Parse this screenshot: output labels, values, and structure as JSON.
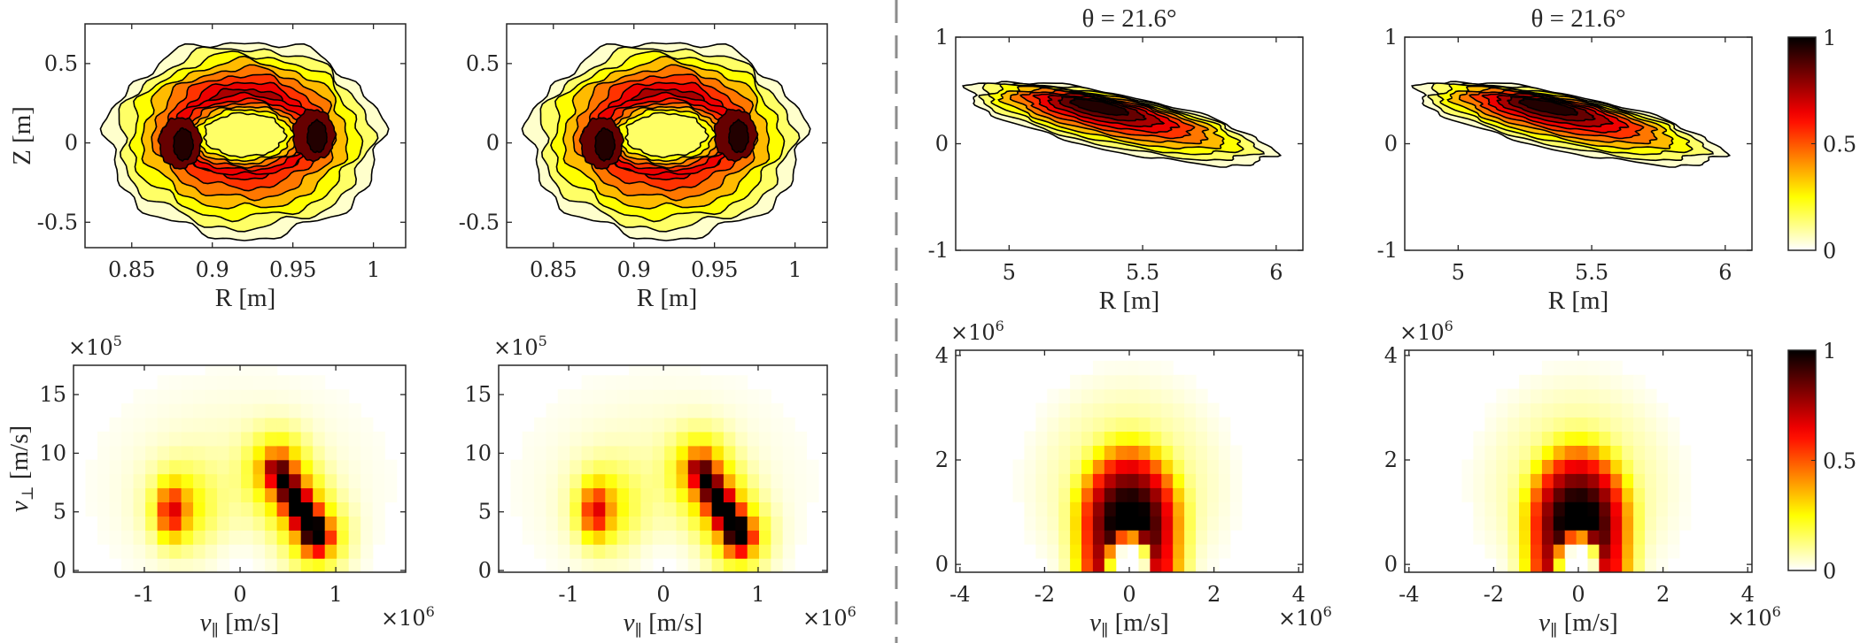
{
  "figure": {
    "divider_color": "#8c8c8c",
    "colormap": "hot (reversed: 0 = white, 1 = black)"
  },
  "chart_data": [
    {
      "id": "A1",
      "type": "contour",
      "xlabel": "R [m]",
      "ylabel": "Z [m]",
      "title": "",
      "xlim": [
        0.821,
        1.02
      ],
      "ylim": [
        -0.66,
        0.75
      ],
      "xticks": [
        "0.85",
        "0.9",
        "0.95",
        "1"
      ],
      "xtick_values": [
        0.85,
        0.9,
        0.95,
        1
      ],
      "yticks": [
        "-0.5",
        "0",
        "0.5"
      ],
      "ytick_values": [
        -0.5,
        0,
        0.5
      ],
      "grid": false,
      "shape": {
        "kind": "ring",
        "center": [
          0.92,
          0.02
        ],
        "outer_radius": [
          0.085,
          0.62
        ],
        "inner_radius": [
          0.032,
          0.2
        ],
        "peaks": [
          [
            0.88,
            0.0
          ],
          [
            0.963,
            0.05
          ]
        ]
      }
    },
    {
      "id": "A2",
      "type": "contour",
      "xlabel": "R [m]",
      "ylabel": "",
      "title": "",
      "xlim": [
        0.821,
        1.02
      ],
      "ylim": [
        -0.66,
        0.75
      ],
      "xticks": [
        "0.85",
        "0.9",
        "0.95",
        "1"
      ],
      "xtick_values": [
        0.85,
        0.9,
        0.95,
        1
      ],
      "yticks": [
        "-0.5",
        "0",
        "0.5"
      ],
      "ytick_values": [
        -0.5,
        0,
        0.5
      ],
      "grid": false,
      "shape": {
        "kind": "ring",
        "center": [
          0.92,
          0.02
        ],
        "outer_radius": [
          0.085,
          0.62
        ],
        "inner_radius": [
          0.032,
          0.2
        ],
        "peaks": [
          [
            0.88,
            0.0
          ],
          [
            0.963,
            0.05
          ]
        ]
      }
    },
    {
      "id": "A3",
      "type": "contour",
      "xlabel": "R [m]",
      "ylabel": "",
      "title": "θ = 21.6°",
      "xlim": [
        4.8,
        6.1
      ],
      "ylim": [
        -1,
        1
      ],
      "xticks": [
        "5",
        "5.5",
        "6"
      ],
      "xtick_values": [
        5,
        5.5,
        6
      ],
      "yticks": [
        "-1",
        "0",
        "1"
      ],
      "ytick_values": [
        -1,
        0,
        1
      ],
      "grid": false,
      "shape": {
        "kind": "tilted",
        "from": [
          4.85,
          0.5
        ],
        "to": [
          5.98,
          -0.12
        ],
        "peak": [
          5.33,
          0.36
        ]
      }
    },
    {
      "id": "A4",
      "type": "contour",
      "xlabel": "R [m]",
      "ylabel": "",
      "title": "θ = 21.6°",
      "xlim": [
        4.8,
        6.1
      ],
      "ylim": [
        -1,
        1
      ],
      "xticks": [
        "5",
        "5.5",
        "6"
      ],
      "xtick_values": [
        5,
        5.5,
        6
      ],
      "yticks": [
        "-1",
        "0",
        "1"
      ],
      "ytick_values": [
        -1,
        0,
        1
      ],
      "grid": false,
      "shape": {
        "kind": "tilted",
        "from": [
          4.85,
          0.5
        ],
        "to": [
          5.98,
          -0.12
        ],
        "peak": [
          5.33,
          0.36
        ]
      }
    },
    {
      "id": "B1",
      "type": "heatmap",
      "xlabel_var": "v",
      "xlabel_sub": "∥",
      "xlabel_unit": " [m/s]",
      "ylabel_var": "v",
      "ylabel_sub": "⊥",
      "ylabel_unit": " [m/s]",
      "x_multiplier": {
        "base": "×10",
        "exp": "6"
      },
      "y_multiplier": {
        "base": "×10",
        "exp": "5"
      },
      "xlim": [
        -1.74,
        1.73
      ],
      "ylim": [
        -0.15,
        17.5
      ],
      "xticks": [
        "-1",
        "0",
        "1"
      ],
      "xtick_values": [
        -1,
        0,
        1
      ],
      "yticks": [
        "0",
        "5",
        "10",
        "15"
      ],
      "ytick_values": [
        0,
        5,
        10,
        15
      ],
      "grid": false,
      "shape": {
        "kind": "two-lobes",
        "left_peak": [
          -0.72,
          5
        ],
        "right_ridge": [
          [
            0.4,
            8.5
          ],
          [
            0.8,
            3
          ]
        ],
        "right_peak_value": 1,
        "left_peak_value": 0.45
      }
    },
    {
      "id": "B2",
      "type": "heatmap",
      "xlabel_var": "v",
      "xlabel_sub": "∥",
      "xlabel_unit": " [m/s]",
      "x_multiplier": {
        "base": "×10",
        "exp": "6"
      },
      "y_multiplier": {
        "base": "×10",
        "exp": "5"
      },
      "xlim": [
        -1.74,
        1.73
      ],
      "ylim": [
        -0.15,
        17.5
      ],
      "xticks": [
        "-1",
        "0",
        "1"
      ],
      "xtick_values": [
        -1,
        0,
        1
      ],
      "yticks": [
        "0",
        "5",
        "10",
        "15"
      ],
      "ytick_values": [
        0,
        5,
        10,
        15
      ],
      "grid": false,
      "shape": {
        "kind": "two-lobes",
        "left_peak": [
          -0.72,
          5
        ],
        "right_ridge": [
          [
            0.4,
            8.5
          ],
          [
            0.8,
            3
          ]
        ],
        "right_peak_value": 1,
        "left_peak_value": 0.45
      }
    },
    {
      "id": "B3",
      "type": "heatmap",
      "xlabel_var": "v",
      "xlabel_sub": "∥",
      "xlabel_unit": " [m/s]",
      "x_multiplier": {
        "base": "×10",
        "exp": "6"
      },
      "y_multiplier": {
        "base": "×10",
        "exp": "6"
      },
      "xlim": [
        -4.1,
        4.1
      ],
      "ylim": [
        -0.15,
        4.1
      ],
      "xticks": [
        "-4",
        "-2",
        "0",
        "2",
        "4"
      ],
      "xtick_values": [
        -4,
        -2,
        0,
        2,
        4
      ],
      "yticks": [
        "0",
        "2",
        "4"
      ],
      "ytick_values": [
        0,
        2,
        4
      ],
      "grid": false,
      "shape": {
        "kind": "arch",
        "peak": [
          0,
          0.8
        ],
        "peak_value": 1
      }
    },
    {
      "id": "B4",
      "type": "heatmap",
      "xlabel_var": "v",
      "xlabel_sub": "∥",
      "xlabel_unit": " [m/s]",
      "x_multiplier": {
        "base": "×10",
        "exp": "6"
      },
      "y_multiplier": {
        "base": "×10",
        "exp": "6"
      },
      "xlim": [
        -4.1,
        4.1
      ],
      "ylim": [
        -0.15,
        4.1
      ],
      "xticks": [
        "-4",
        "-2",
        "0",
        "2",
        "4"
      ],
      "xtick_values": [
        -4,
        -2,
        0,
        2,
        4
      ],
      "yticks": [
        "0",
        "2",
        "4"
      ],
      "ytick_values": [
        0,
        2,
        4
      ],
      "grid": false,
      "shape": {
        "kind": "arch",
        "peak": [
          0,
          0.8
        ],
        "peak_value": 1
      }
    }
  ],
  "colorbars": [
    {
      "id": "CB1",
      "range": [
        0,
        1
      ],
      "ticks": [
        "0",
        "0.5",
        "1"
      ],
      "tick_values": [
        0,
        0.5,
        1
      ]
    },
    {
      "id": "CB2",
      "range": [
        0,
        1
      ],
      "ticks": [
        "0",
        "0.5",
        "1"
      ],
      "tick_values": [
        0,
        0.5,
        1
      ]
    }
  ]
}
